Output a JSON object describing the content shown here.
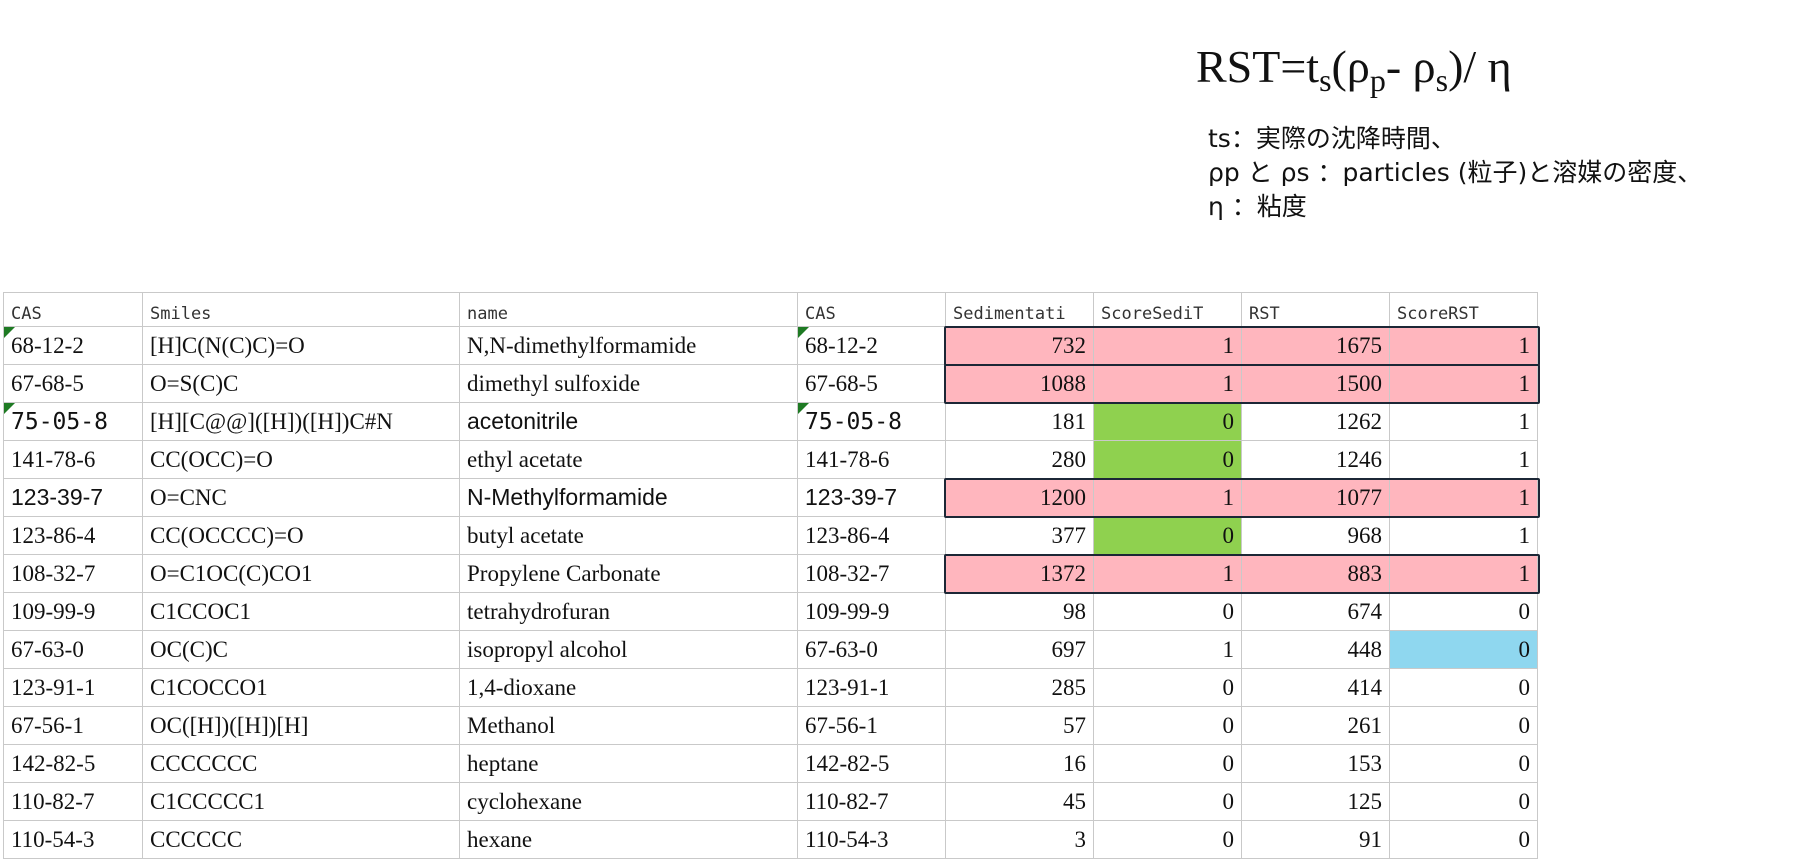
{
  "formula": {
    "lhs": "RST=t",
    "sub_s": "s",
    "open": "(ρ",
    "sub_p": "p",
    "mid": "- ρ",
    "sub_s2": "s",
    "close": ")/ η"
  },
  "legend": [
    "ts：実際の沈降時間、",
    "ρp と ρs ：particles (粒子)と溶媒の密度、",
    "η ：粘度"
  ],
  "table": {
    "headers": [
      "CAS",
      "Smiles",
      "name",
      "CAS",
      "Sedimentati",
      "ScoreSediT",
      "RST",
      "ScoreRST"
    ],
    "rows": [
      [
        "68-12-2",
        "[H]C(N(C)C)=O",
        "N,N-dimethylformamide",
        "68-12-2",
        "732",
        "1",
        "1675",
        "1"
      ],
      [
        "67-68-5",
        "O=S(C)C",
        "dimethyl sulfoxide",
        "67-68-5",
        "1088",
        "1",
        "1500",
        "1"
      ],
      [
        "75-05-8",
        "[H][C@@]([H])([H])C#N",
        "acetonitrile",
        "75-05-8",
        "181",
        "0",
        "1262",
        "1"
      ],
      [
        "141-78-6",
        "CC(OCC)=O",
        "ethyl acetate",
        "141-78-6",
        "280",
        "0",
        "1246",
        "1"
      ],
      [
        "123-39-7",
        "O=CNC",
        "N-Methylformamide",
        "123-39-7",
        "1200",
        "1",
        "1077",
        "1"
      ],
      [
        "123-86-4",
        "CC(OCCCC)=O",
        "butyl acetate",
        "123-86-4",
        "377",
        "0",
        "968",
        "1"
      ],
      [
        "108-32-7",
        "O=C1OC(C)CO1",
        "Propylene Carbonate",
        "108-32-7",
        "1372",
        "1",
        "883",
        "1"
      ],
      [
        "109-99-9",
        "C1CCOC1",
        "tetrahydrofuran",
        "109-99-9",
        "98",
        "0",
        "674",
        "0"
      ],
      [
        "67-63-0",
        "OC(C)C",
        "isopropyl alcohol",
        "67-63-0",
        "697",
        "1",
        "448",
        "0"
      ],
      [
        "123-91-1",
        "C1COCCO1",
        "1,4-dioxane",
        "123-91-1",
        "285",
        "0",
        "414",
        "0"
      ],
      [
        "67-56-1",
        "OC([H])([H])[H]",
        "Methanol",
        "67-56-1",
        "57",
        "0",
        "261",
        "0"
      ],
      [
        "142-82-5",
        "CCCCCCC",
        "heptane",
        "142-82-5",
        "16",
        "0",
        "153",
        "0"
      ],
      [
        "110-82-7",
        "C1CCCCC1",
        "cyclohexane",
        "110-82-7",
        "45",
        "0",
        "125",
        "0"
      ],
      [
        "110-54-3",
        "CCCCCC",
        "hexane",
        "110-54-3",
        "3",
        "0",
        "91",
        "0"
      ]
    ]
  },
  "colors": {
    "highlight_pink": "#ffb6be",
    "highlight_green": "#8fd14f",
    "highlight_blue": "#8fd7ef",
    "box_outline": "#1c2736"
  }
}
